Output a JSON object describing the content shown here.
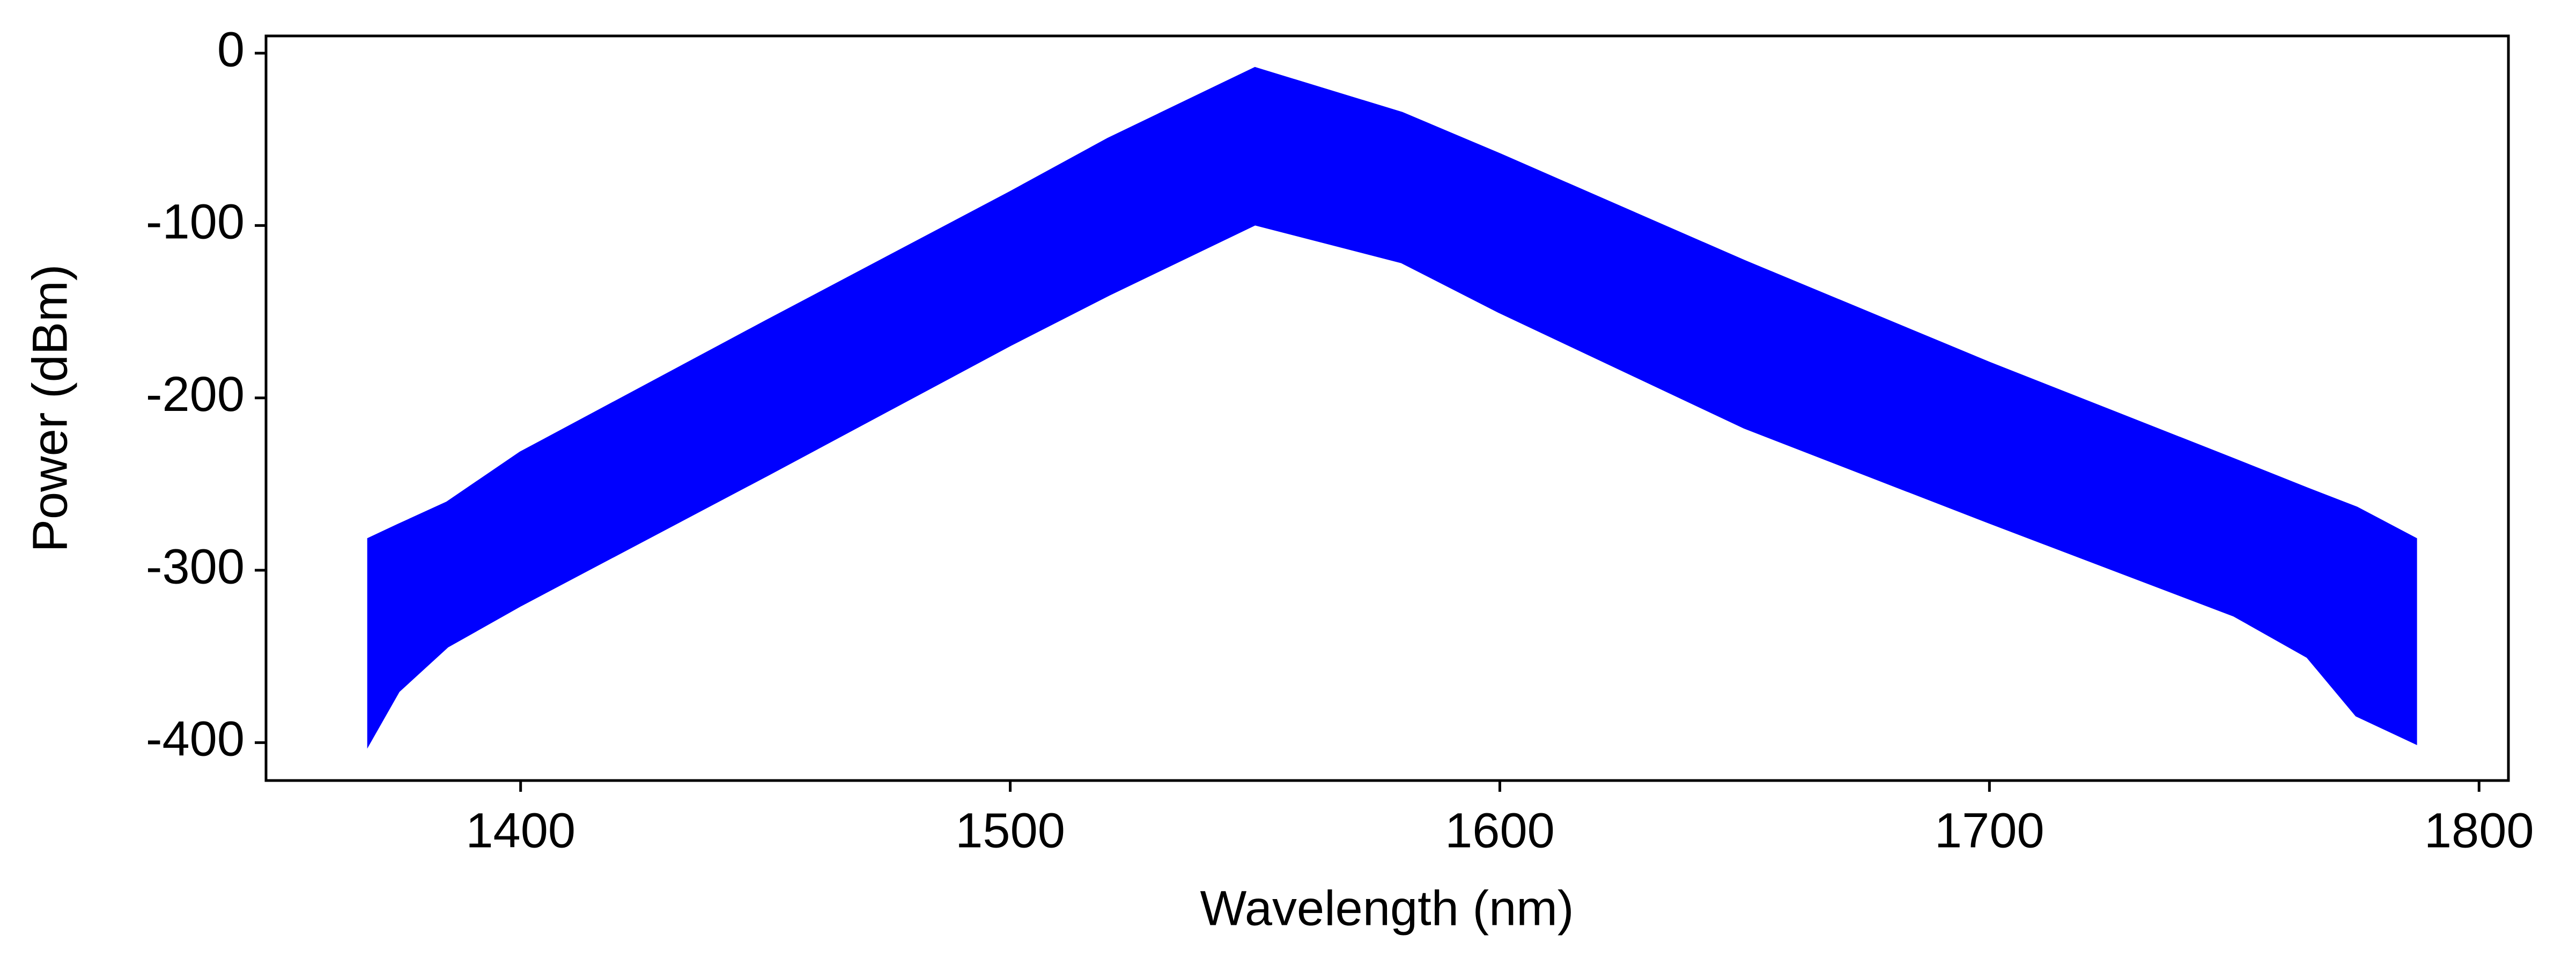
{
  "chart_data": {
    "type": "range-area",
    "xlabel": "Wavelength (nm)",
    "ylabel": "Power (dBm)",
    "series": [
      {
        "color": "#0000ff",
        "x": [
          1369,
          1375,
          1385,
          1400,
          1450,
          1500,
          1520,
          1550,
          1580,
          1600,
          1650,
          1700,
          1750,
          1765,
          1775,
          1787
        ],
        "high": [
          -282,
          -274,
          -261,
          -232,
          -156,
          -81,
          -50,
          -9,
          -35,
          -59,
          -121,
          -180,
          -236,
          -253,
          -264,
          -282
        ],
        "low": [
          -400,
          -370,
          -344,
          -320,
          -245,
          -169,
          -140,
          -99,
          -121,
          -150,
          -217,
          -272,
          -326,
          -350,
          -384,
          -400
        ]
      }
    ],
    "xlim": [
      1348,
      1806
    ],
    "ylim": [
      -422,
      10
    ],
    "xticks": [
      1400,
      1500,
      1600,
      1700,
      1800
    ],
    "yticks": [
      0,
      -100,
      -200,
      -300,
      -400
    ],
    "grid": false
  }
}
